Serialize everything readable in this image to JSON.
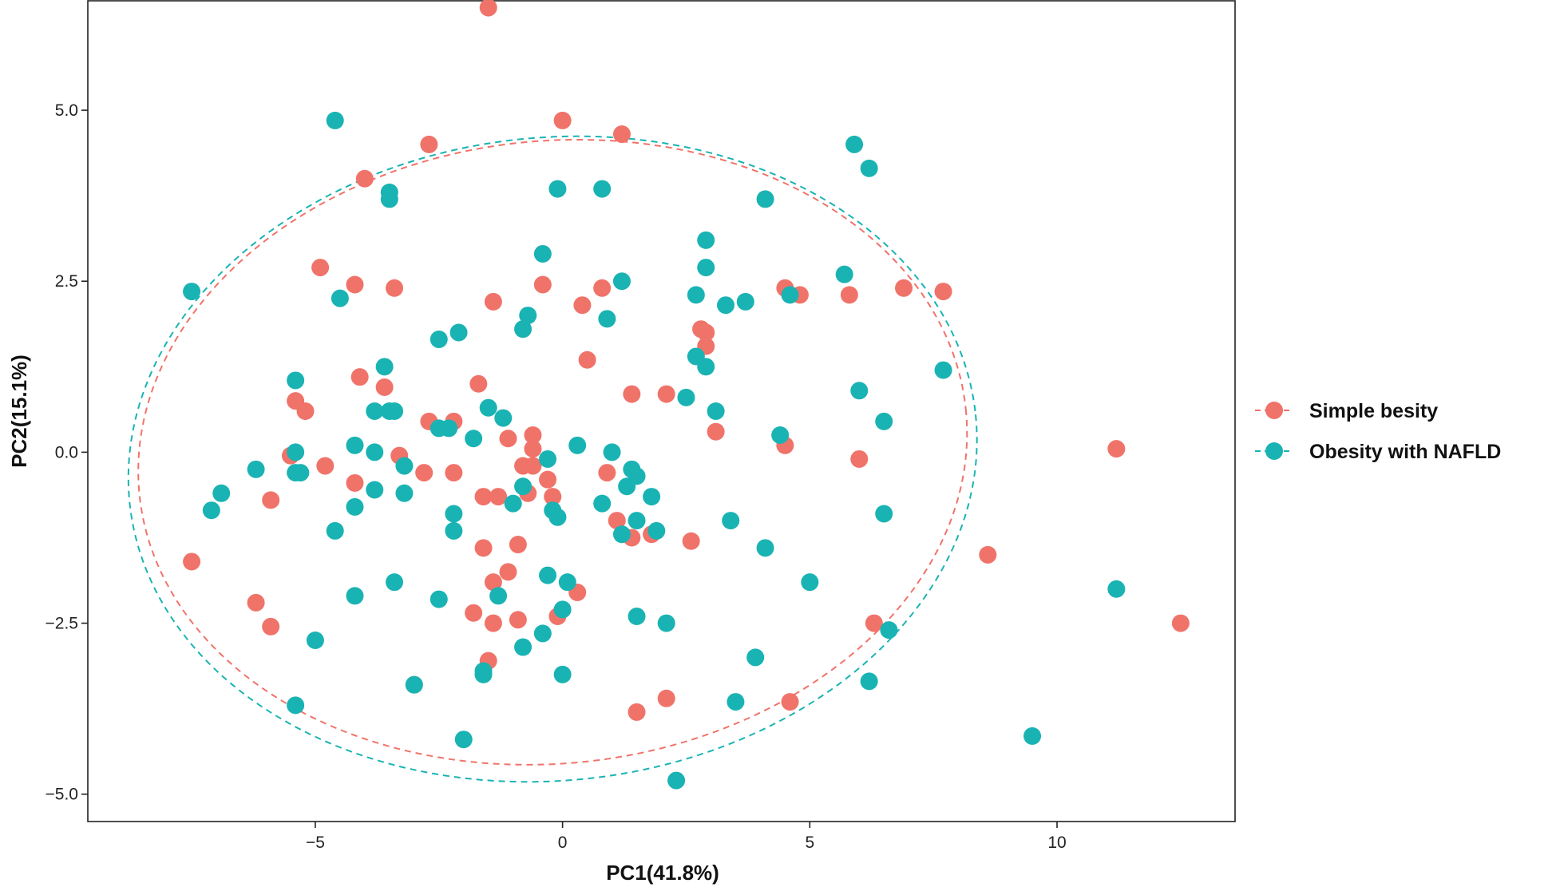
{
  "chart_data": {
    "type": "scatter",
    "title": "",
    "xlabel": "PC1(41.8%)",
    "ylabel": "PC2(15.1%)",
    "xlim": [
      -9.6,
      13.6
    ],
    "ylim": [
      -5.4,
      6.6
    ],
    "xticks": [
      -5,
      0,
      5,
      10
    ],
    "xtick_labels": [
      "−5",
      "0",
      "5",
      "10"
    ],
    "yticks": [
      -5.0,
      -2.5,
      0.0,
      2.5,
      5.0
    ],
    "ytick_labels": [
      "−5.0",
      "−2.5",
      "0.0",
      "2.5",
      "5.0"
    ],
    "grid": false,
    "legend_position": "right",
    "ellipses": "dashed, per series",
    "series": [
      {
        "name": "Simple besity",
        "color": "#f0736a",
        "ellipse": {
          "cx": -0.2,
          "cy": 0.0,
          "rx": 8.4,
          "ry": 4.55,
          "angle": -6
        },
        "x": [
          -1.5,
          0.0,
          1.2,
          -2.7,
          -4.0,
          -4.9,
          -4.2,
          -3.4,
          -1.4,
          -0.4,
          0.4,
          0.8,
          2.8,
          2.9,
          2.9,
          0.5,
          1.4,
          2.1,
          3.1,
          4.5,
          4.8,
          5.8,
          6.9,
          7.7,
          -4.1,
          -3.6,
          -5.4,
          -5.2,
          -2.7,
          -2.2,
          -1.7,
          -1.1,
          -0.6,
          -0.6,
          -0.8,
          -5.5,
          -4.8,
          -4.2,
          -3.3,
          -2.8,
          -2.2,
          -1.6,
          -1.3,
          -0.7,
          -0.6,
          -0.3,
          -0.2,
          0.9,
          1.4,
          1.8,
          2.6,
          4.5,
          6.0,
          -5.9,
          -7.5,
          -6.2,
          -5.9,
          -1.6,
          -1.4,
          -1.1,
          -1.8,
          -1.4,
          -0.9,
          -0.1,
          0.3,
          -1.5,
          -3.0,
          1.5,
          2.1,
          4.6,
          6.3,
          8.6,
          11.2,
          12.5,
          -0.9,
          1.1
        ],
        "y": [
          6.5,
          4.85,
          4.65,
          4.5,
          4.0,
          2.7,
          2.45,
          2.4,
          2.2,
          2.45,
          2.15,
          2.4,
          1.8,
          1.75,
          1.55,
          1.35,
          0.85,
          0.85,
          0.3,
          2.4,
          2.3,
          2.3,
          2.4,
          2.35,
          1.1,
          0.95,
          0.75,
          0.6,
          0.45,
          0.45,
          1.0,
          0.2,
          0.25,
          0.05,
          -0.2,
          -0.05,
          -0.2,
          -0.45,
          -0.05,
          -0.3,
          -0.3,
          -0.65,
          -0.65,
          -0.6,
          -0.2,
          -0.4,
          -0.65,
          -0.3,
          -1.25,
          -1.2,
          -1.3,
          0.1,
          -0.1,
          -0.7,
          -1.6,
          -2.2,
          -2.55,
          -1.4,
          -1.9,
          -1.75,
          -2.35,
          -2.5,
          -2.45,
          -2.4,
          -2.05,
          -3.05,
          -3.4,
          -3.8,
          -3.6,
          -3.65,
          -2.5,
          -1.5,
          0.05,
          -2.5,
          -1.35,
          -1.0
        ]
      },
      {
        "name": "Obesity with NAFLD",
        "color": "#1ab3b3",
        "ellipse": {
          "cx": -0.2,
          "cy": -0.1,
          "rx": 8.6,
          "ry": 4.7,
          "angle": -6
        },
        "x": [
          -4.6,
          5.9,
          6.2,
          -3.5,
          -3.5,
          -0.1,
          0.8,
          4.1,
          2.9,
          2.9,
          -0.4,
          1.2,
          -4.5,
          -7.5,
          -2.5,
          -2.1,
          -0.7,
          -0.8,
          2.7,
          3.3,
          3.7,
          4.6,
          5.7,
          0.9,
          -5.4,
          -3.6,
          -3.8,
          -3.4,
          -3.5,
          -1.5,
          -1.2,
          -2.5,
          -2.3,
          -1.8,
          2.7,
          2.9,
          2.5,
          3.1,
          6.0,
          6.5,
          7.7,
          4.4,
          -4.2,
          -3.8,
          -5.4,
          -5.3,
          -3.2,
          -3.8,
          -3.2,
          -1.0,
          -0.3,
          0.3,
          1.0,
          1.4,
          1.5,
          1.3,
          1.8,
          -0.8,
          -0.1,
          -0.2,
          0.8,
          -2.2,
          -2.2,
          -6.2,
          -6.9,
          -7.1,
          -4.6,
          -4.2,
          -5.4,
          1.2,
          1.5,
          1.9,
          3.4,
          4.1,
          5.0,
          6.5,
          -1.3,
          -0.3,
          0.1,
          0.0,
          -3.4,
          -4.2,
          -2.5,
          -5.0,
          -1.6,
          -0.8,
          -0.4,
          1.5,
          2.1,
          0.0,
          -3.0,
          -1.6,
          -5.4,
          -2.0,
          3.5,
          3.9,
          6.2,
          6.6,
          9.5,
          11.2,
          2.3
        ],
        "y": [
          4.85,
          4.5,
          4.15,
          3.8,
          3.7,
          3.85,
          3.85,
          3.7,
          3.1,
          2.7,
          2.9,
          2.5,
          2.25,
          2.35,
          1.65,
          1.75,
          2.0,
          1.8,
          2.3,
          2.15,
          2.2,
          2.3,
          2.6,
          1.95,
          1.05,
          1.25,
          0.6,
          0.6,
          0.6,
          0.65,
          0.5,
          0.35,
          0.35,
          0.2,
          1.4,
          1.25,
          0.8,
          0.6,
          0.9,
          0.45,
          1.2,
          0.25,
          0.1,
          0.0,
          0.0,
          -0.3,
          -0.2,
          -0.55,
          -0.6,
          -0.75,
          -0.1,
          0.1,
          0.0,
          -0.25,
          -0.35,
          -0.5,
          -0.65,
          -0.5,
          -0.95,
          -0.85,
          -0.75,
          -0.9,
          -1.15,
          -0.25,
          -0.6,
          -0.85,
          -1.15,
          -0.8,
          -0.3,
          -1.2,
          -1.0,
          -1.15,
          -1.0,
          -1.4,
          -1.9,
          -0.9,
          -2.1,
          -1.8,
          -1.9,
          -2.3,
          -1.9,
          -2.1,
          -2.15,
          -2.75,
          -3.25,
          -2.85,
          -2.65,
          -2.4,
          -2.5,
          -3.25,
          -3.4,
          -3.2,
          -3.7,
          -4.2,
          -3.65,
          -3.0,
          -3.35,
          -2.6,
          -4.15,
          -2.0,
          -4.8
        ]
      }
    ]
  }
}
